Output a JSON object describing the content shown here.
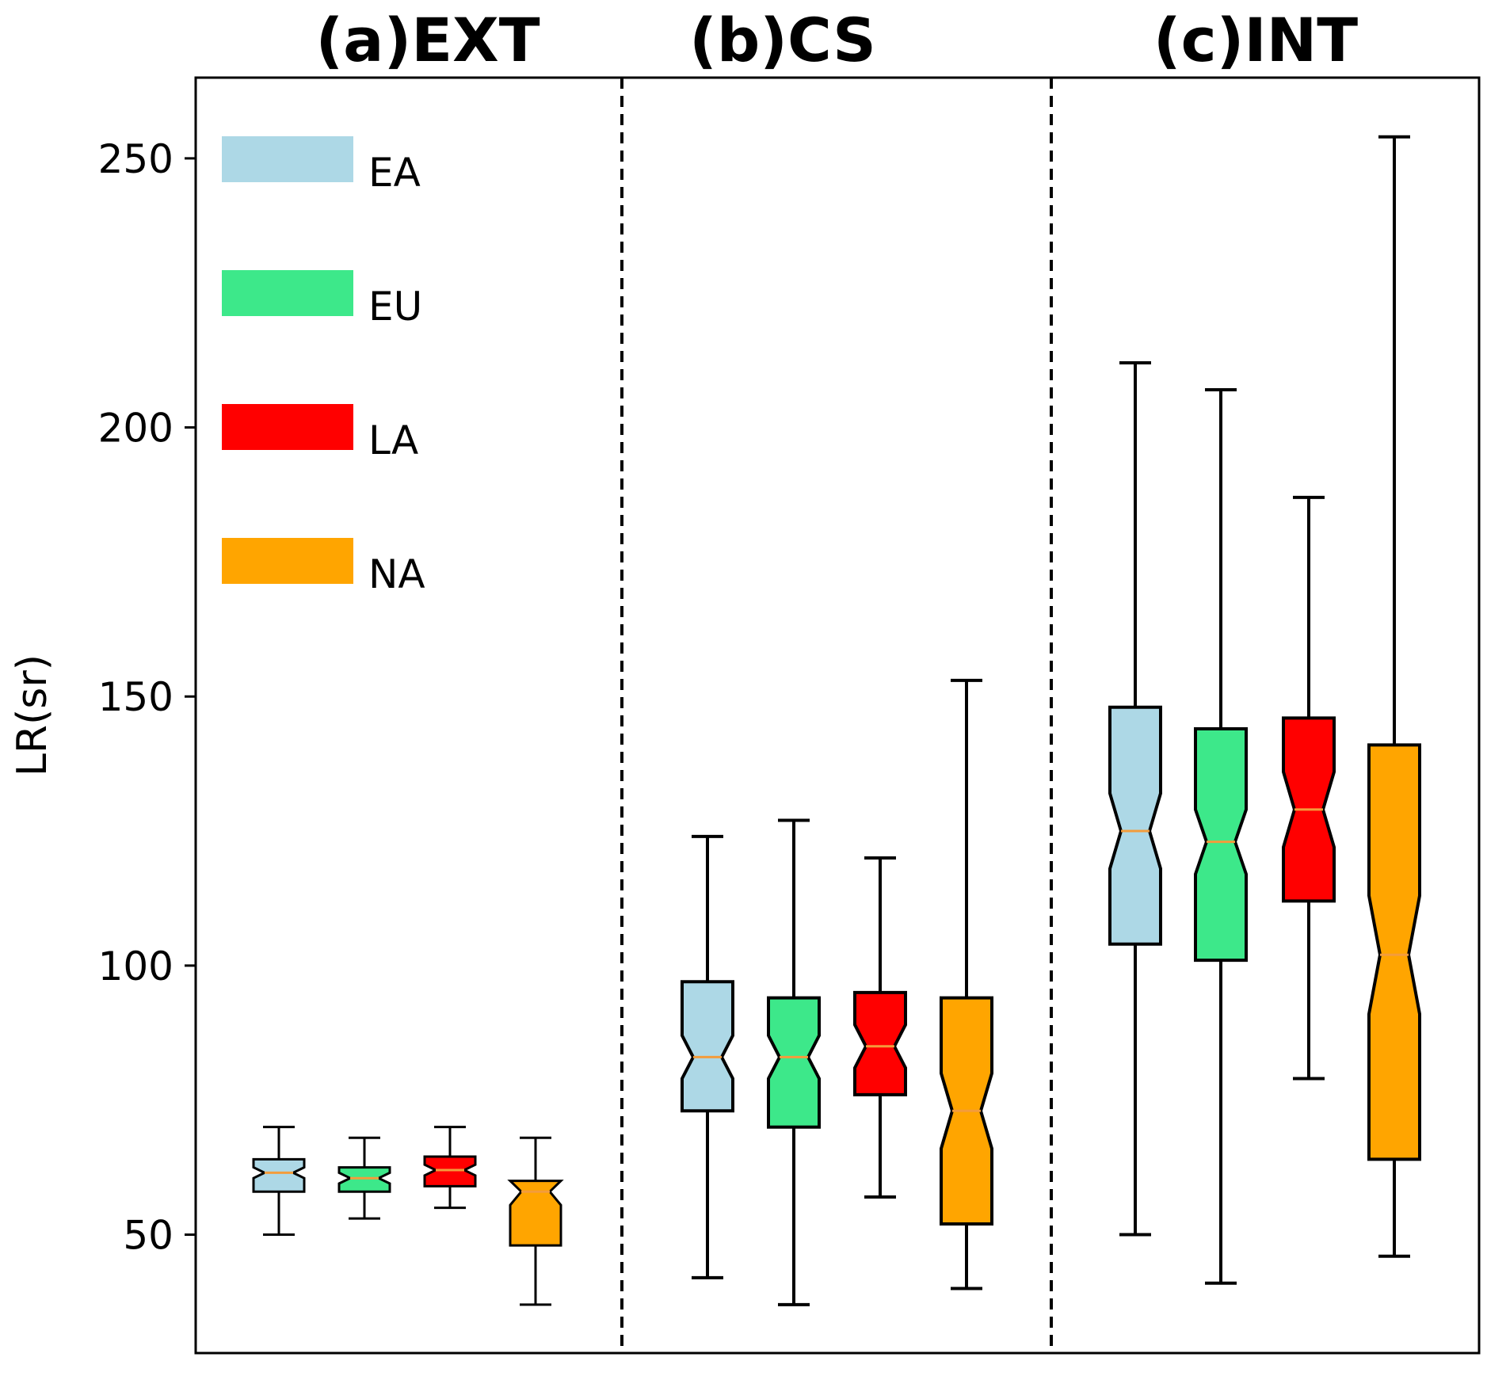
{
  "chart_data": {
    "type": "boxplot",
    "ylabel": "LR(sr)",
    "ylim": [
      28,
      265
    ],
    "yticks": [
      50,
      100,
      150,
      200,
      250
    ],
    "notched": true,
    "legend": {
      "placement": "top-left",
      "entries": [
        {
          "label": "EA",
          "color": "#add8e6"
        },
        {
          "label": "EU",
          "color": "#3de88a"
        },
        {
          "label": "LA",
          "color": "#ff0000"
        },
        {
          "label": "NA",
          "color": "#ffa500"
        }
      ]
    },
    "median_color": "#f39c3c",
    "panels": [
      {
        "title": "(a)EXT",
        "boxes": [
          {
            "region": "EA",
            "whisker_low": 50,
            "q1": 58,
            "median": 61.5,
            "q3": 64,
            "whisker_high": 70,
            "notch_low": 60.5,
            "notch_high": 62.5
          },
          {
            "region": "EU",
            "whisker_low": 53,
            "q1": 58,
            "median": 60.5,
            "q3": 62.5,
            "whisker_high": 68,
            "notch_low": 59.5,
            "notch_high": 61.5
          },
          {
            "region": "LA",
            "whisker_low": 55,
            "q1": 59,
            "median": 62,
            "q3": 64.5,
            "whisker_high": 70,
            "notch_low": 61,
            "notch_high": 63
          },
          {
            "region": "NA",
            "whisker_low": 37,
            "q1": 48,
            "median": 58,
            "q3": 60,
            "whisker_high": 68,
            "notch_low": 55.5,
            "notch_high": 60
          }
        ]
      },
      {
        "title": "(b)CS",
        "boxes": [
          {
            "region": "EA",
            "whisker_low": 42,
            "q1": 73,
            "median": 83,
            "q3": 97,
            "whisker_high": 124,
            "notch_low": 79,
            "notch_high": 87
          },
          {
            "region": "EU",
            "whisker_low": 37,
            "q1": 70,
            "median": 83,
            "q3": 94,
            "whisker_high": 127,
            "notch_low": 79,
            "notch_high": 87
          },
          {
            "region": "LA",
            "whisker_low": 57,
            "q1": 76,
            "median": 85,
            "q3": 95,
            "whisker_high": 120,
            "notch_low": 81,
            "notch_high": 89
          },
          {
            "region": "NA",
            "whisker_low": 40,
            "q1": 52,
            "median": 73,
            "q3": 94,
            "whisker_high": 153,
            "notch_low": 66,
            "notch_high": 80
          }
        ]
      },
      {
        "title": "(c)INT",
        "boxes": [
          {
            "region": "EA",
            "whisker_low": 50,
            "q1": 104,
            "median": 125,
            "q3": 148,
            "whisker_high": 212,
            "notch_low": 118,
            "notch_high": 132
          },
          {
            "region": "EU",
            "whisker_low": 41,
            "q1": 101,
            "median": 123,
            "q3": 144,
            "whisker_high": 207,
            "notch_low": 117,
            "notch_high": 129
          },
          {
            "region": "LA",
            "whisker_low": 79,
            "q1": 112,
            "median": 129,
            "q3": 146,
            "whisker_high": 187,
            "notch_low": 122,
            "notch_high": 136
          },
          {
            "region": "NA",
            "whisker_low": 46,
            "q1": 64,
            "median": 102,
            "q3": 141,
            "whisker_high": 254,
            "notch_low": 91,
            "notch_high": 113
          }
        ]
      }
    ]
  }
}
